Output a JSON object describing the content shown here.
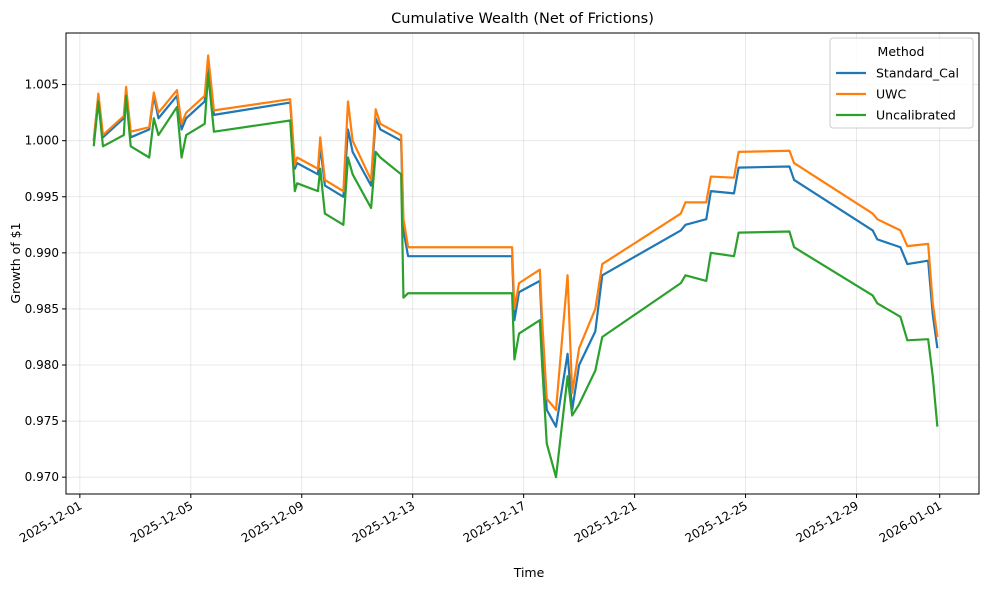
{
  "chart_data": {
    "type": "line",
    "title": "Cumulative Wealth (Net of Frictions)",
    "xlabel": "Time",
    "ylabel": "Growth of $1",
    "xlim": [
      "2025-11-30T12:00",
      "2026-01-02T10:00"
    ],
    "ylim": [
      0.9685,
      1.0096
    ],
    "yticks": [
      0.97,
      0.975,
      0.98,
      0.985,
      0.99,
      0.995,
      1.0,
      1.005
    ],
    "xticks": [
      "2025-12-01",
      "2025-12-05",
      "2025-12-09",
      "2025-12-13",
      "2025-12-17",
      "2025-12-21",
      "2025-12-25",
      "2025-12-29",
      "2026-01-01"
    ],
    "grid": true,
    "legend": {
      "title": "Method",
      "placement": "top-right"
    },
    "series": [
      {
        "name": "Standard_Cal",
        "color": "#1f77b4",
        "points": [
          [
            "2025-12-01T12:00",
            1.0
          ],
          [
            "2025-12-01T16:00",
            1.004
          ],
          [
            "2025-12-01T20:00",
            1.0003
          ],
          [
            "2025-12-02T14:00",
            1.002
          ],
          [
            "2025-12-02T16:00",
            1.0045
          ],
          [
            "2025-12-02T20:00",
            1.0003
          ],
          [
            "2025-12-03T12:00",
            1.001
          ],
          [
            "2025-12-03T16:00",
            1.004
          ],
          [
            "2025-12-03T20:00",
            1.002
          ],
          [
            "2025-12-04T12:00",
            1.004
          ],
          [
            "2025-12-04T16:00",
            1.001
          ],
          [
            "2025-12-04T20:00",
            1.002
          ],
          [
            "2025-12-05T12:00",
            1.0035
          ],
          [
            "2025-12-05T15:00",
            1.007
          ],
          [
            "2025-12-05T20:00",
            1.0023
          ],
          [
            "2025-12-08T14:00",
            1.0034
          ],
          [
            "2025-12-08T18:00",
            0.9975
          ],
          [
            "2025-12-08T20:00",
            0.998
          ],
          [
            "2025-12-09T14:00",
            0.997
          ],
          [
            "2025-12-09T16:00",
            0.9995
          ],
          [
            "2025-12-09T20:00",
            0.996
          ],
          [
            "2025-12-10T12:00",
            0.995
          ],
          [
            "2025-12-10T16:00",
            1.001
          ],
          [
            "2025-12-10T20:00",
            0.999
          ],
          [
            "2025-12-11T12:00",
            0.996
          ],
          [
            "2025-12-11T16:00",
            1.002
          ],
          [
            "2025-12-11T20:00",
            1.001
          ],
          [
            "2025-12-12T14:00",
            1.0
          ],
          [
            "2025-12-12T16:00",
            0.992
          ],
          [
            "2025-12-12T20:00",
            0.9897
          ],
          [
            "2025-12-16T14:00",
            0.9897
          ],
          [
            "2025-12-16T16:00",
            0.984
          ],
          [
            "2025-12-16T20:00",
            0.9865
          ],
          [
            "2025-12-17T14:00",
            0.9875
          ],
          [
            "2025-12-17T16:00",
            0.983
          ],
          [
            "2025-12-17T20:00",
            0.976
          ],
          [
            "2025-12-18T04:00",
            0.9745
          ],
          [
            "2025-12-18T14:00",
            0.981
          ],
          [
            "2025-12-18T18:00",
            0.976
          ],
          [
            "2025-12-19T00:00",
            0.98
          ],
          [
            "2025-12-19T14:00",
            0.983
          ],
          [
            "2025-12-19T20:00",
            0.988
          ],
          [
            "2025-12-22T16:00",
            0.992
          ],
          [
            "2025-12-22T20:00",
            0.9925
          ],
          [
            "2025-12-23T14:00",
            0.993
          ],
          [
            "2025-12-23T18:00",
            0.9955
          ],
          [
            "2025-12-24T14:00",
            0.9953
          ],
          [
            "2025-12-24T18:00",
            0.9976
          ],
          [
            "2025-12-26T14:00",
            0.9977
          ],
          [
            "2025-12-26T18:00",
            0.9965
          ],
          [
            "2025-12-29T14:00",
            0.992
          ],
          [
            "2025-12-29T18:00",
            0.9912
          ],
          [
            "2025-12-30T14:00",
            0.9905
          ],
          [
            "2025-12-30T20:00",
            0.989
          ],
          [
            "2025-12-31T14:00",
            0.9893
          ],
          [
            "2025-12-31T18:00",
            0.9845
          ],
          [
            "2025-12-31T22:00",
            0.9815
          ]
        ]
      },
      {
        "name": "UWC",
        "color": "#ff7f0e",
        "points": [
          [
            "2025-12-01T12:00",
            1.0
          ],
          [
            "2025-12-01T16:00",
            1.0042
          ],
          [
            "2025-12-01T20:00",
            1.0005
          ],
          [
            "2025-12-02T14:00",
            1.0022
          ],
          [
            "2025-12-02T16:00",
            1.0048
          ],
          [
            "2025-12-02T20:00",
            1.0008
          ],
          [
            "2025-12-03T12:00",
            1.0012
          ],
          [
            "2025-12-03T16:00",
            1.0043
          ],
          [
            "2025-12-03T20:00",
            1.0025
          ],
          [
            "2025-12-04T12:00",
            1.0045
          ],
          [
            "2025-12-04T16:00",
            1.0015
          ],
          [
            "2025-12-04T20:00",
            1.0025
          ],
          [
            "2025-12-05T12:00",
            1.004
          ],
          [
            "2025-12-05T15:00",
            1.0076
          ],
          [
            "2025-12-05T20:00",
            1.0027
          ],
          [
            "2025-12-08T14:00",
            1.0037
          ],
          [
            "2025-12-08T18:00",
            0.9978
          ],
          [
            "2025-12-08T20:00",
            0.9985
          ],
          [
            "2025-12-09T14:00",
            0.9975
          ],
          [
            "2025-12-09T16:00",
            1.0003
          ],
          [
            "2025-12-09T20:00",
            0.9965
          ],
          [
            "2025-12-10T12:00",
            0.9955
          ],
          [
            "2025-12-10T16:00",
            1.0035
          ],
          [
            "2025-12-10T20:00",
            1.0
          ],
          [
            "2025-12-11T12:00",
            0.9965
          ],
          [
            "2025-12-11T16:00",
            1.0028
          ],
          [
            "2025-12-11T20:00",
            1.0015
          ],
          [
            "2025-12-12T14:00",
            1.0005
          ],
          [
            "2025-12-12T16:00",
            0.993
          ],
          [
            "2025-12-12T20:00",
            0.9905
          ],
          [
            "2025-12-16T14:00",
            0.9905
          ],
          [
            "2025-12-16T16:00",
            0.985
          ],
          [
            "2025-12-16T20:00",
            0.9873
          ],
          [
            "2025-12-17T14:00",
            0.9885
          ],
          [
            "2025-12-17T16:00",
            0.984
          ],
          [
            "2025-12-17T20:00",
            0.977
          ],
          [
            "2025-12-18T04:00",
            0.976
          ],
          [
            "2025-12-18T14:00",
            0.988
          ],
          [
            "2025-12-18T18:00",
            0.9775
          ],
          [
            "2025-12-19T00:00",
            0.9815
          ],
          [
            "2025-12-19T14:00",
            0.985
          ],
          [
            "2025-12-19T20:00",
            0.989
          ],
          [
            "2025-12-22T16:00",
            0.9935
          ],
          [
            "2025-12-22T20:00",
            0.9945
          ],
          [
            "2025-12-23T14:00",
            0.9945
          ],
          [
            "2025-12-23T18:00",
            0.9968
          ],
          [
            "2025-12-24T14:00",
            0.9967
          ],
          [
            "2025-12-24T18:00",
            0.999
          ],
          [
            "2025-12-26T14:00",
            0.9991
          ],
          [
            "2025-12-26T18:00",
            0.998
          ],
          [
            "2025-12-29T14:00",
            0.9935
          ],
          [
            "2025-12-29T18:00",
            0.993
          ],
          [
            "2025-12-30T14:00",
            0.992
          ],
          [
            "2025-12-30T20:00",
            0.9906
          ],
          [
            "2025-12-31T14:00",
            0.9908
          ],
          [
            "2025-12-31T18:00",
            0.9855
          ],
          [
            "2025-12-31T22:00",
            0.9825
          ]
        ]
      },
      {
        "name": "Uncalibrated",
        "color": "#2ca02c",
        "points": [
          [
            "2025-12-01T12:00",
            0.9995
          ],
          [
            "2025-12-01T16:00",
            1.0035
          ],
          [
            "2025-12-01T20:00",
            0.9995
          ],
          [
            "2025-12-02T14:00",
            1.0005
          ],
          [
            "2025-12-02T16:00",
            1.004
          ],
          [
            "2025-12-02T20:00",
            0.9995
          ],
          [
            "2025-12-03T12:00",
            0.9985
          ],
          [
            "2025-12-03T16:00",
            1.002
          ],
          [
            "2025-12-03T20:00",
            1.0005
          ],
          [
            "2025-12-04T12:00",
            1.003
          ],
          [
            "2025-12-04T16:00",
            0.9985
          ],
          [
            "2025-12-04T20:00",
            1.0005
          ],
          [
            "2025-12-05T12:00",
            1.0015
          ],
          [
            "2025-12-05T15:00",
            1.006
          ],
          [
            "2025-12-05T20:00",
            1.0008
          ],
          [
            "2025-12-08T14:00",
            1.0018
          ],
          [
            "2025-12-08T18:00",
            0.9955
          ],
          [
            "2025-12-08T20:00",
            0.9962
          ],
          [
            "2025-12-09T14:00",
            0.9955
          ],
          [
            "2025-12-09T16:00",
            0.9975
          ],
          [
            "2025-12-09T20:00",
            0.9935
          ],
          [
            "2025-12-10T12:00",
            0.9925
          ],
          [
            "2025-12-10T16:00",
            0.9985
          ],
          [
            "2025-12-10T20:00",
            0.997
          ],
          [
            "2025-12-11T12:00",
            0.994
          ],
          [
            "2025-12-11T16:00",
            0.999
          ],
          [
            "2025-12-11T20:00",
            0.9985
          ],
          [
            "2025-12-12T14:00",
            0.997
          ],
          [
            "2025-12-12T16:00",
            0.986
          ],
          [
            "2025-12-12T20:00",
            0.9864
          ],
          [
            "2025-12-16T14:00",
            0.9864
          ],
          [
            "2025-12-16T16:00",
            0.9805
          ],
          [
            "2025-12-16T20:00",
            0.9828
          ],
          [
            "2025-12-17T14:00",
            0.984
          ],
          [
            "2025-12-17T16:00",
            0.98
          ],
          [
            "2025-12-17T20:00",
            0.973
          ],
          [
            "2025-12-18T04:00",
            0.97
          ],
          [
            "2025-12-18T14:00",
            0.979
          ],
          [
            "2025-12-18T18:00",
            0.9755
          ],
          [
            "2025-12-19T00:00",
            0.9765
          ],
          [
            "2025-12-19T14:00",
            0.9795
          ],
          [
            "2025-12-19T20:00",
            0.9825
          ],
          [
            "2025-12-22T16:00",
            0.9873
          ],
          [
            "2025-12-22T20:00",
            0.988
          ],
          [
            "2025-12-23T14:00",
            0.9875
          ],
          [
            "2025-12-23T18:00",
            0.99
          ],
          [
            "2025-12-24T14:00",
            0.9897
          ],
          [
            "2025-12-24T18:00",
            0.9918
          ],
          [
            "2025-12-26T14:00",
            0.9919
          ],
          [
            "2025-12-26T18:00",
            0.9905
          ],
          [
            "2025-12-29T14:00",
            0.9862
          ],
          [
            "2025-12-29T18:00",
            0.9855
          ],
          [
            "2025-12-30T14:00",
            0.9843
          ],
          [
            "2025-12-30T20:00",
            0.9822
          ],
          [
            "2025-12-31T14:00",
            0.9823
          ],
          [
            "2025-12-31T18:00",
            0.979
          ],
          [
            "2025-12-31T22:00",
            0.9745
          ]
        ]
      }
    ]
  }
}
